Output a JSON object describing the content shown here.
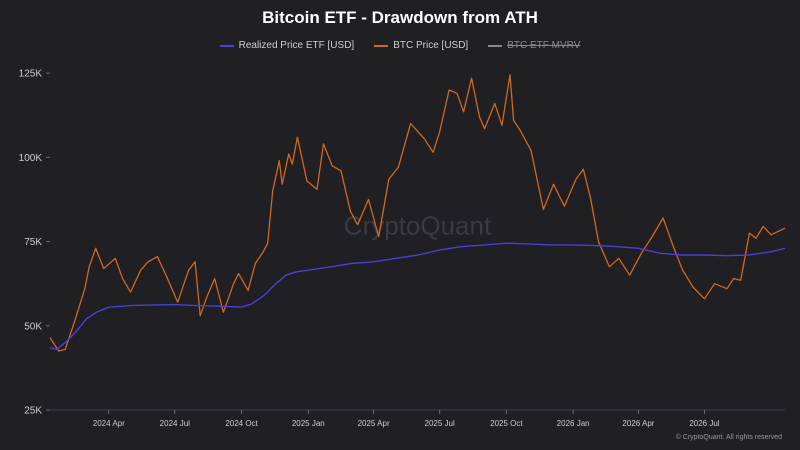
{
  "header": {
    "title": "Bitcoin ETF - Drawdown from ATH"
  },
  "footer": {
    "copyright": "© CryptoQuant. All rights reserved"
  },
  "watermark": "CryptoQuant",
  "colors": {
    "background": "#1f1f24",
    "realized_price": "#4a3fd6",
    "btc_price": "#d2691e",
    "mvrv": "#8a8a8a",
    "axis_text": "#cfcfcf"
  },
  "chart_data": {
    "type": "line",
    "title": "Bitcoin ETF - Drawdown from ATH",
    "xlabel": "",
    "ylabel": "",
    "ylim": [
      25000,
      128000
    ],
    "y_ticks": [
      25000,
      50000,
      75000,
      100000,
      125000
    ],
    "y_tick_labels": [
      "25K",
      "50K",
      "75K",
      "100K",
      "125K"
    ],
    "x_range": [
      "2024-01-11",
      "2026-10-20"
    ],
    "x_ticks": [
      "2024-04-01",
      "2024-07-01",
      "2024-10-01",
      "2025-01-01",
      "2025-04-01",
      "2025-07-01",
      "2025-10-01",
      "2026-01-01",
      "2026-04-01",
      "2026-07-01"
    ],
    "x_tick_labels": [
      "2024 Apr",
      "2024 Jul",
      "2024 Oct",
      "2025 Jan",
      "2025 Apr",
      "2025 Jul",
      "2025 Oct",
      "2026 Jan",
      "2026 Apr",
      "2026 Jul"
    ],
    "grid": false,
    "legend_position": "top",
    "series": [
      {
        "name": "Realized Price ETF [USD]",
        "color": "#4a3fd6",
        "visible": true,
        "x": [
          "2024-01-11",
          "2024-01-20",
          "2024-02-01",
          "2024-02-15",
          "2024-03-01",
          "2024-03-15",
          "2024-04-01",
          "2024-05-01",
          "2024-06-01",
          "2024-07-01",
          "2024-08-01",
          "2024-09-01",
          "2024-10-01",
          "2024-10-15",
          "2024-11-01",
          "2024-11-15",
          "2024-12-01",
          "2024-12-15",
          "2025-01-01",
          "2025-02-01",
          "2025-03-01",
          "2025-04-01",
          "2025-05-01",
          "2025-06-01",
          "2025-07-01",
          "2025-08-01",
          "2025-09-01",
          "2025-10-01",
          "2025-11-01",
          "2025-12-01",
          "2026-01-01",
          "2026-02-01",
          "2026-03-01",
          "2026-04-01",
          "2026-05-01",
          "2026-06-01",
          "2026-07-01",
          "2026-08-01",
          "2026-09-01",
          "2026-10-01",
          "2026-10-20"
        ],
        "values": [
          43500,
          43000,
          45000,
          48000,
          52000,
          54000,
          55500,
          56000,
          56200,
          56300,
          56000,
          55800,
          55500,
          56500,
          59000,
          62000,
          65000,
          66000,
          66500,
          67500,
          68500,
          69000,
          70000,
          71000,
          72500,
          73500,
          74000,
          74500,
          74300,
          74000,
          74000,
          73800,
          73500,
          73000,
          71500,
          71000,
          71000,
          70800,
          71000,
          72000,
          73000
        ]
      },
      {
        "name": "BTC Price [USD]",
        "color": "#d2691e",
        "visible": true,
        "x": [
          "2024-01-11",
          "2024-01-23",
          "2024-02-01",
          "2024-02-15",
          "2024-02-28",
          "2024-03-05",
          "2024-03-14",
          "2024-03-25",
          "2024-04-10",
          "2024-04-20",
          "2024-05-01",
          "2024-05-15",
          "2024-05-25",
          "2024-06-07",
          "2024-06-20",
          "2024-07-05",
          "2024-07-20",
          "2024-07-29",
          "2024-08-05",
          "2024-08-15",
          "2024-08-25",
          "2024-09-06",
          "2024-09-20",
          "2024-09-27",
          "2024-10-10",
          "2024-10-20",
          "2024-10-31",
          "2024-11-06",
          "2024-11-13",
          "2024-11-22",
          "2024-11-26",
          "2024-12-05",
          "2024-12-10",
          "2024-12-17",
          "2024-12-30",
          "2025-01-13",
          "2025-01-22",
          "2025-02-03",
          "2025-02-15",
          "2025-02-28",
          "2025-03-10",
          "2025-03-25",
          "2025-04-08",
          "2025-04-22",
          "2025-05-05",
          "2025-05-22",
          "2025-06-10",
          "2025-06-22",
          "2025-07-01",
          "2025-07-14",
          "2025-07-25",
          "2025-08-03",
          "2025-08-14",
          "2025-08-25",
          "2025-09-01",
          "2025-09-15",
          "2025-09-25",
          "2025-10-06",
          "2025-10-11",
          "2025-10-20",
          "2025-11-04",
          "2025-11-21",
          "2025-12-05",
          "2025-12-20",
          "2026-01-05",
          "2026-01-15",
          "2026-01-25",
          "2026-02-05",
          "2026-02-20",
          "2026-03-05",
          "2026-03-20",
          "2026-04-05",
          "2026-04-20",
          "2026-05-05",
          "2026-05-20",
          "2026-06-01",
          "2026-06-15",
          "2026-07-01",
          "2026-07-15",
          "2026-08-01",
          "2026-08-10",
          "2026-08-20",
          "2026-09-01",
          "2026-09-10",
          "2026-09-20",
          "2026-10-01",
          "2026-10-20"
        ],
        "values": [
          46500,
          42500,
          43000,
          52000,
          61000,
          67500,
          73000,
          67000,
          70000,
          64000,
          60000,
          66500,
          69000,
          70500,
          64500,
          57000,
          66500,
          69000,
          53000,
          59000,
          64000,
          54000,
          62500,
          65500,
          60500,
          68500,
          72000,
          74500,
          90000,
          99000,
          92000,
          101000,
          98000,
          106000,
          93000,
          90500,
          104000,
          97500,
          96000,
          84000,
          80000,
          87500,
          76500,
          93500,
          97000,
          110000,
          105500,
          101500,
          107500,
          120000,
          119000,
          113500,
          123500,
          112000,
          108500,
          116000,
          109500,
          124500,
          111000,
          108000,
          102000,
          84500,
          92000,
          85500,
          93500,
          96500,
          88000,
          75000,
          67500,
          70000,
          65000,
          71500,
          76500,
          82000,
          73000,
          66500,
          61500,
          58000,
          62500,
          61000,
          64000,
          63500,
          77500,
          76000,
          79500,
          77000,
          79000
        ]
      },
      {
        "name": "BTC ETF MVRV",
        "color": "#8a8a8a",
        "visible": false
      }
    ]
  }
}
